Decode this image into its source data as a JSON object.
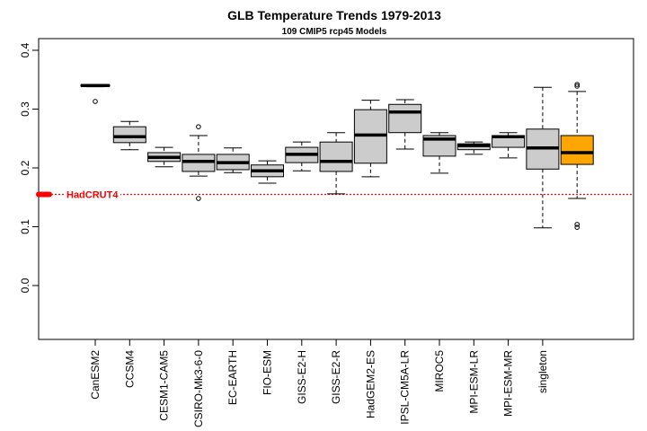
{
  "chart_data": {
    "type": "boxplot",
    "title": "GLB Temperature Trends 1979-2013",
    "subtitle": "109 CMIP5 rcp45 Models",
    "xlabel": "",
    "ylabel": "",
    "ylim": [
      -0.095,
      0.42
    ],
    "yticks": [
      0.0,
      0.1,
      0.2,
      0.3,
      0.4
    ],
    "ytick_labels": [
      "0.0",
      "0.1",
      "0.2",
      "0.3",
      "0.4"
    ],
    "grid": false,
    "reference_line": {
      "label": "HadCRUT4",
      "value": 0.155,
      "color": "#ff0000",
      "style": "dotted"
    },
    "box_fill": "#cccccc",
    "highlight_fill": "#ffa500",
    "categories": [
      "CanESM2",
      "CCSM4",
      "CESM1-CAM5",
      "CSIRO-Mk3-6-0",
      "EC-EARTH",
      "FIO-ESM",
      "GISS-E2-H",
      "GISS-E2-R",
      "HadGEM2-ES",
      "IPSL-CM5A-LR",
      "MIROC5",
      "MPI-ESM-LR",
      "MPI-ESM-MR",
      "singleton",
      ""
    ],
    "boxes": [
      {
        "name": "CanESM2",
        "lower_whisker": 0.338,
        "q1": 0.339,
        "median": 0.34,
        "q3": 0.341,
        "upper_whisker": 0.342,
        "outliers": [
          0.313
        ]
      },
      {
        "name": "CCSM4",
        "lower_whisker": 0.231,
        "q1": 0.243,
        "median": 0.253,
        "q3": 0.27,
        "upper_whisker": 0.279,
        "outliers": []
      },
      {
        "name": "CESM1-CAM5",
        "lower_whisker": 0.202,
        "q1": 0.211,
        "median": 0.218,
        "q3": 0.226,
        "upper_whisker": 0.235,
        "outliers": []
      },
      {
        "name": "CSIRO-Mk3-6-0",
        "lower_whisker": 0.186,
        "q1": 0.194,
        "median": 0.211,
        "q3": 0.223,
        "upper_whisker": 0.255,
        "outliers": [
          0.27,
          0.148
        ]
      },
      {
        "name": "EC-EARTH",
        "lower_whisker": 0.192,
        "q1": 0.197,
        "median": 0.209,
        "q3": 0.223,
        "upper_whisker": 0.234,
        "outliers": []
      },
      {
        "name": "FIO-ESM",
        "lower_whisker": 0.174,
        "q1": 0.185,
        "median": 0.195,
        "q3": 0.205,
        "upper_whisker": 0.212,
        "outliers": []
      },
      {
        "name": "GISS-E2-H",
        "lower_whisker": 0.195,
        "q1": 0.209,
        "median": 0.223,
        "q3": 0.235,
        "upper_whisker": 0.244,
        "outliers": []
      },
      {
        "name": "GISS-E2-R",
        "lower_whisker": 0.156,
        "q1": 0.194,
        "median": 0.211,
        "q3": 0.244,
        "upper_whisker": 0.26,
        "outliers": []
      },
      {
        "name": "HadGEM2-ES",
        "lower_whisker": 0.185,
        "q1": 0.208,
        "median": 0.256,
        "q3": 0.299,
        "upper_whisker": 0.315,
        "outliers": []
      },
      {
        "name": "IPSL-CM5A-LR",
        "lower_whisker": 0.232,
        "q1": 0.26,
        "median": 0.295,
        "q3": 0.308,
        "upper_whisker": 0.316,
        "outliers": []
      },
      {
        "name": "MIROC5",
        "lower_whisker": 0.191,
        "q1": 0.22,
        "median": 0.249,
        "q3": 0.255,
        "upper_whisker": 0.26,
        "outliers": []
      },
      {
        "name": "MPI-ESM-LR",
        "lower_whisker": 0.223,
        "q1": 0.231,
        "median": 0.238,
        "q3": 0.241,
        "upper_whisker": 0.244,
        "outliers": []
      },
      {
        "name": "MPI-ESM-MR",
        "lower_whisker": 0.217,
        "q1": 0.235,
        "median": 0.253,
        "q3": 0.255,
        "upper_whisker": 0.26,
        "outliers": []
      },
      {
        "name": "singleton",
        "lower_whisker": 0.098,
        "q1": 0.198,
        "median": 0.234,
        "q3": 0.266,
        "upper_whisker": 0.337,
        "outliers": []
      },
      {
        "name": "",
        "highlight": true,
        "lower_whisker": 0.148,
        "q1": 0.206,
        "median": 0.226,
        "q3": 0.255,
        "upper_whisker": 0.33,
        "outliers": [
          0.342,
          0.339,
          0.104,
          0.099
        ]
      }
    ]
  }
}
